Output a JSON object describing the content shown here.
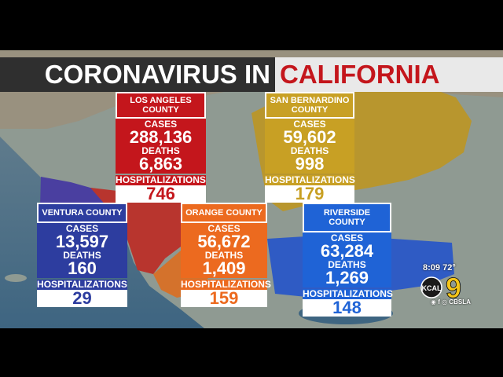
{
  "banner": {
    "left": "CORONAVIRUS IN",
    "right": "CALIFORNIA"
  },
  "labels": {
    "cases": "CASES",
    "deaths": "DEATHS",
    "hospitalizations": "HOSPITALIZATIONS"
  },
  "counties": {
    "los_angeles": {
      "name": "LOS ANGELES\nCOUNTY",
      "cases": "288,136",
      "deaths": "6,863",
      "hospitalizations": "746",
      "color": "#c4161c"
    },
    "san_bernardino": {
      "name": "SAN BERNARDINO\nCOUNTY",
      "cases": "59,602",
      "deaths": "998",
      "hospitalizations": "179",
      "color": "#c8a024"
    },
    "ventura": {
      "name": "VENTURA COUNTY",
      "cases": "13,597",
      "deaths": "160",
      "hospitalizations": "29",
      "color": "#2d3d9f"
    },
    "orange": {
      "name": "ORANGE COUNTY",
      "cases": "56,672",
      "deaths": "1,409",
      "hospitalizations": "159",
      "color": "#ec6a1f"
    },
    "riverside": {
      "name": "RIVERSIDE COUNTY",
      "cases": "63,284",
      "deaths": "1,269",
      "hospitalizations": "148",
      "color": "#1f63d6"
    }
  },
  "station": {
    "time": "8:09",
    "temp": "72°",
    "call": "KCAL",
    "channel": "9",
    "social": "CBSLA"
  },
  "icons": {
    "map": "southern-california-map",
    "logo": "kcal9-logo"
  }
}
